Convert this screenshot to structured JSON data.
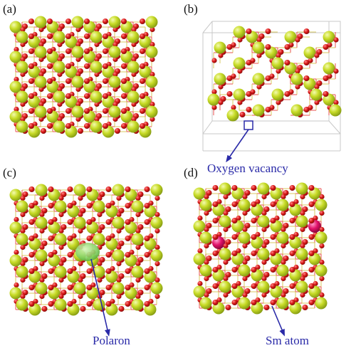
{
  "figure": {
    "panels": [
      {
        "label": "(a)",
        "structure": "pristine"
      },
      {
        "label": "(b)",
        "structure": "vacancy",
        "annotation": "Oxygen vacancy"
      },
      {
        "label": "(c)",
        "structure": "polaron",
        "annotation": "Polaron"
      },
      {
        "label": "(d)",
        "structure": "doped",
        "annotation": "Sm atom"
      }
    ]
  },
  "colors": {
    "cation": "#c8dc28",
    "cation_highlight": "#f4fbb0",
    "cation_shade": "#7e9410",
    "oxygen": "#d81818",
    "oxygen_highlight": "#ff8a8a",
    "dopant": "#e01068",
    "dopant_highlight": "#ff9ccc",
    "polaron": "#7fd060",
    "bond": "#d8c860",
    "bond_red": "#e85050",
    "annotation": "#2a2aa8",
    "cell_edge": "#c8c8c8"
  },
  "legend_items": [
    "cation",
    "oxygen",
    "dopant",
    "polaron",
    "vacancy"
  ]
}
